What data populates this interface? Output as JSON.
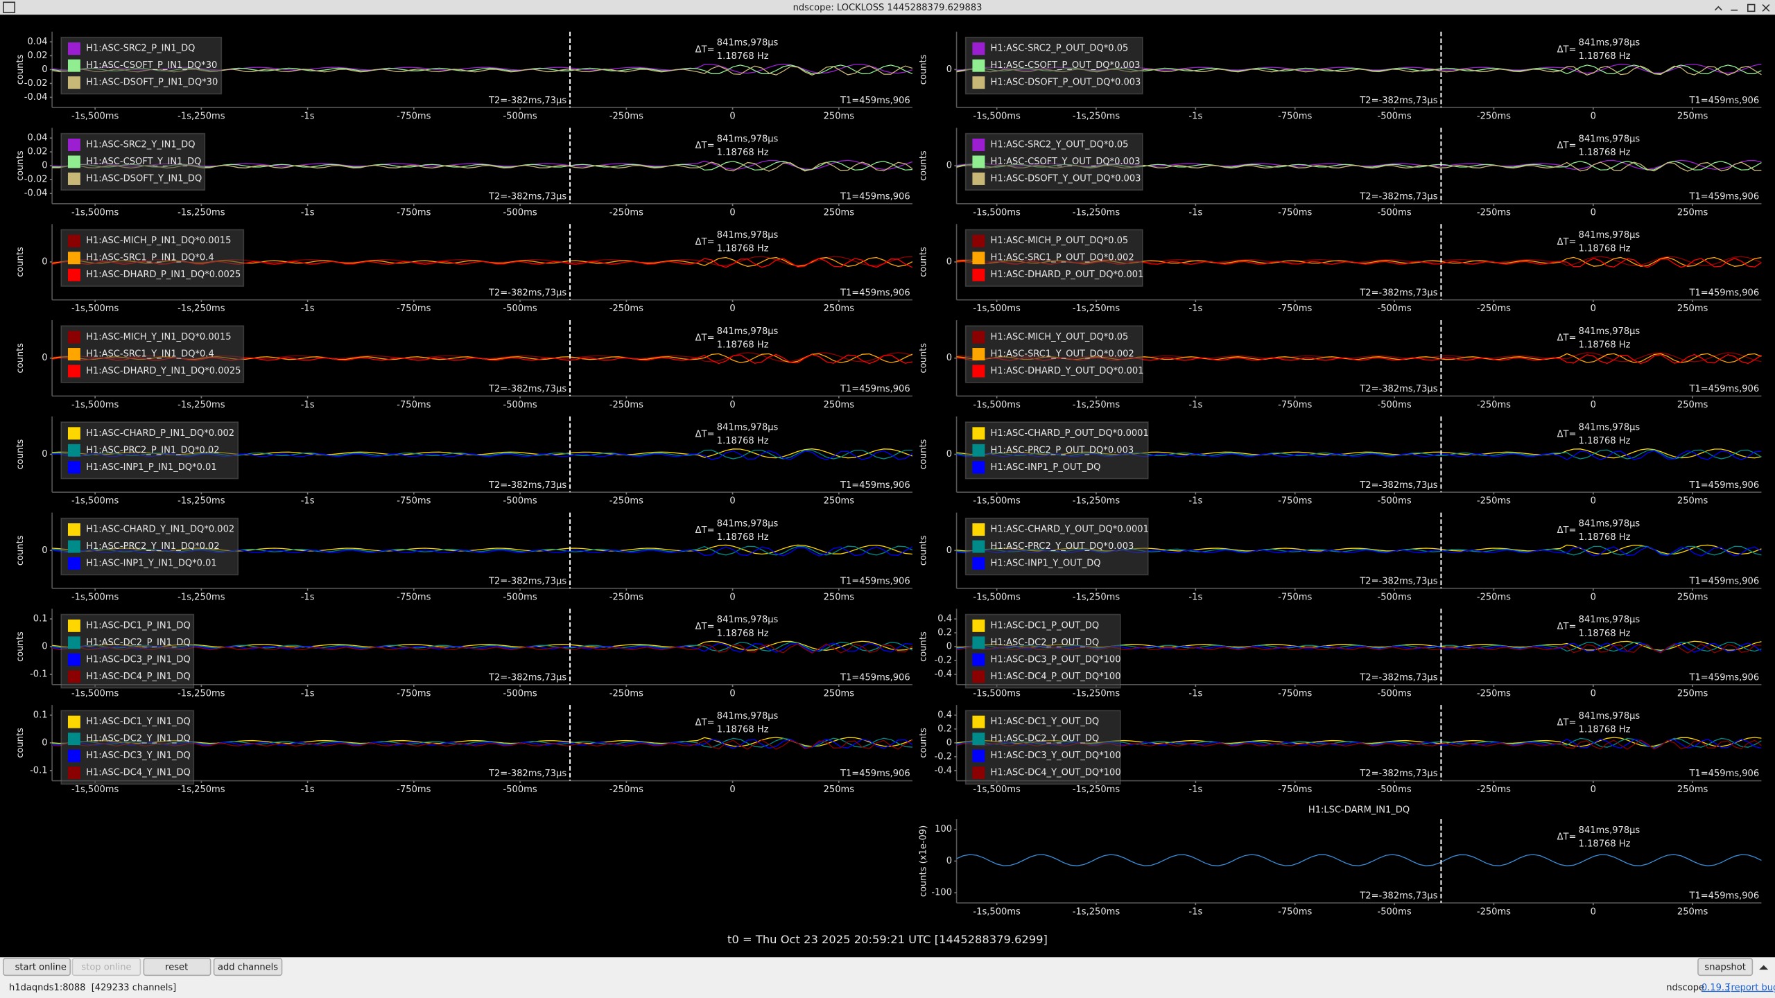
{
  "window_title": "ndscope: LOCKLOSS 1445288379.629883",
  "x_ticks": [
    "-1s,500ms",
    "-1s,250ms",
    "-1s",
    "-750ms",
    "-500ms",
    "-250ms",
    "0",
    "250ms"
  ],
  "cursors": {
    "delta_label": "ΔT=",
    "delta": "841ms,978µs",
    "freq": "1.18768 Hz",
    "t1": "T1=459ms,906",
    "t2": "T2=-382ms,73µs"
  },
  "panels": [
    {
      "y_label": "counts",
      "yticks": [
        0.04,
        0.02,
        0,
        -0.02,
        -0.04
      ],
      "channels": [
        {
          "name": "H1:ASC-SRC2_P_IN1_DQ",
          "color": "#9b1fd0"
        },
        {
          "name": "H1:ASC-CSOFT_P_IN1_DQ*30",
          "color": "#90ee90"
        },
        {
          "name": "H1:ASC-DSOFT_P_IN1_DQ*30",
          "color": "#c8b878"
        }
      ]
    },
    {
      "y_label": "counts",
      "yticks": [
        0.04,
        0.02,
        0,
        -0.02,
        -0.04
      ],
      "channels": [
        {
          "name": "H1:ASC-SRC2_Y_IN1_DQ",
          "color": "#9b1fd0"
        },
        {
          "name": "H1:ASC-CSOFT_Y_IN1_DQ",
          "color": "#90ee90"
        },
        {
          "name": "H1:ASC-DSOFT_Y_IN1_DQ",
          "color": "#c8b878"
        }
      ]
    },
    {
      "y_label": "counts",
      "yticks": [
        0
      ],
      "channels": [
        {
          "name": "H1:ASC-MICH_P_IN1_DQ*0.0015",
          "color": "#8b0000"
        },
        {
          "name": "H1:ASC-SRC1_P_IN1_DQ*0.4",
          "color": "#ffa500"
        },
        {
          "name": "H1:ASC-DHARD_P_IN1_DQ*0.0025",
          "color": "#ff0000"
        }
      ]
    },
    {
      "y_label": "counts",
      "yticks": [
        0
      ],
      "channels": [
        {
          "name": "H1:ASC-MICH_Y_IN1_DQ*0.0015",
          "color": "#8b0000"
        },
        {
          "name": "H1:ASC-SRC1_Y_IN1_DQ*0.4",
          "color": "#ffa500"
        },
        {
          "name": "H1:ASC-DHARD_Y_IN1_DQ*0.0025",
          "color": "#ff0000"
        }
      ]
    },
    {
      "y_label": "counts",
      "yticks": [
        0
      ],
      "channels": [
        {
          "name": "H1:ASC-CHARD_P_IN1_DQ*0.002",
          "color": "#ffd700"
        },
        {
          "name": "H1:ASC-PRC2_P_IN1_DQ*0.02",
          "color": "#008b8b"
        },
        {
          "name": "H1:ASC-INP1_P_IN1_DQ*0.01",
          "color": "#0000ff"
        }
      ]
    },
    {
      "y_label": "counts",
      "yticks": [
        0
      ],
      "channels": [
        {
          "name": "H1:ASC-CHARD_Y_IN1_DQ*0.002",
          "color": "#ffd700"
        },
        {
          "name": "H1:ASC-PRC2_Y_IN1_DQ*0.02",
          "color": "#008b8b"
        },
        {
          "name": "H1:ASC-INP1_Y_IN1_DQ*0.01",
          "color": "#0000ff"
        }
      ]
    },
    {
      "y_label": "counts",
      "yticks": [
        0.1,
        0,
        -0.1
      ],
      "channels": [
        {
          "name": "H1:ASC-DC1_P_IN1_DQ",
          "color": "#ffd700"
        },
        {
          "name": "H1:ASC-DC2_P_IN1_DQ",
          "color": "#008b8b"
        },
        {
          "name": "H1:ASC-DC3_P_IN1_DQ",
          "color": "#0000ff"
        },
        {
          "name": "H1:ASC-DC4_P_IN1_DQ",
          "color": "#8b0000"
        }
      ]
    },
    {
      "y_label": "counts",
      "yticks": [
        0.1,
        0,
        -0.1
      ],
      "channels": [
        {
          "name": "H1:ASC-DC1_Y_IN1_DQ",
          "color": "#ffd700"
        },
        {
          "name": "H1:ASC-DC2_Y_IN1_DQ",
          "color": "#008b8b"
        },
        {
          "name": "H1:ASC-DC3_Y_IN1_DQ",
          "color": "#0000ff"
        },
        {
          "name": "H1:ASC-DC4_Y_IN1_DQ",
          "color": "#8b0000"
        }
      ]
    },
    {
      "y_label": "counts",
      "yticks": [
        0
      ],
      "channels": [
        {
          "name": "H1:ASC-SRC2_P_OUT_DQ*0.05",
          "color": "#9b1fd0"
        },
        {
          "name": "H1:ASC-CSOFT_P_OUT_DQ*0.003",
          "color": "#90ee90"
        },
        {
          "name": "H1:ASC-DSOFT_P_OUT_DQ*0.003",
          "color": "#c8b878"
        }
      ]
    },
    {
      "y_label": "counts",
      "yticks": [
        0
      ],
      "channels": [
        {
          "name": "H1:ASC-SRC2_Y_OUT_DQ*0.05",
          "color": "#9b1fd0"
        },
        {
          "name": "H1:ASC-CSOFT_Y_OUT_DQ*0.003",
          "color": "#90ee90"
        },
        {
          "name": "H1:ASC-DSOFT_Y_OUT_DQ*0.003",
          "color": "#c8b878"
        }
      ]
    },
    {
      "y_label": "counts",
      "yticks": [
        0
      ],
      "channels": [
        {
          "name": "H1:ASC-MICH_P_OUT_DQ*0.05",
          "color": "#8b0000"
        },
        {
          "name": "H1:ASC-SRC1_P_OUT_DQ*0.002",
          "color": "#ffa500"
        },
        {
          "name": "H1:ASC-DHARD_P_OUT_DQ*0.001",
          "color": "#ff0000"
        }
      ]
    },
    {
      "y_label": "counts",
      "yticks": [
        0
      ],
      "channels": [
        {
          "name": "H1:ASC-MICH_Y_OUT_DQ*0.05",
          "color": "#8b0000"
        },
        {
          "name": "H1:ASC-SRC1_Y_OUT_DQ*0.002",
          "color": "#ffa500"
        },
        {
          "name": "H1:ASC-DHARD_Y_OUT_DQ*0.001",
          "color": "#ff0000"
        }
      ]
    },
    {
      "y_label": "counts",
      "yticks": [
        0
      ],
      "channels": [
        {
          "name": "H1:ASC-CHARD_P_OUT_DQ*0.0001",
          "color": "#ffd700"
        },
        {
          "name": "H1:ASC-PRC2_P_OUT_DQ*0.003",
          "color": "#008b8b"
        },
        {
          "name": "H1:ASC-INP1_P_OUT_DQ",
          "color": "#0000ff"
        }
      ]
    },
    {
      "y_label": "counts",
      "yticks": [
        0
      ],
      "channels": [
        {
          "name": "H1:ASC-CHARD_Y_OUT_DQ*0.0001",
          "color": "#ffd700"
        },
        {
          "name": "H1:ASC-PRC2_Y_OUT_DQ*0.003",
          "color": "#008b8b"
        },
        {
          "name": "H1:ASC-INP1_Y_OUT_DQ",
          "color": "#0000ff"
        }
      ]
    },
    {
      "y_label": "counts",
      "yticks": [
        0.4,
        0.2,
        0,
        -0.2,
        -0.4
      ],
      "channels": [
        {
          "name": "H1:ASC-DC1_P_OUT_DQ",
          "color": "#ffd700"
        },
        {
          "name": "H1:ASC-DC2_P_OUT_DQ",
          "color": "#008b8b"
        },
        {
          "name": "H1:ASC-DC3_P_OUT_DQ*100",
          "color": "#0000ff"
        },
        {
          "name": "H1:ASC-DC4_P_OUT_DQ*100",
          "color": "#8b0000"
        }
      ]
    },
    {
      "y_label": "counts",
      "yticks": [
        0.4,
        0.2,
        0,
        -0.2,
        -0.4
      ],
      "channels": [
        {
          "name": "H1:ASC-DC1_Y_OUT_DQ",
          "color": "#ffd700"
        },
        {
          "name": "H1:ASC-DC2_Y_OUT_DQ",
          "color": "#008b8b"
        },
        {
          "name": "H1:ASC-DC3_Y_OUT_DQ*100",
          "color": "#0000ff"
        },
        {
          "name": "H1:ASC-DC4_Y_OUT_DQ*100",
          "color": "#8b0000"
        }
      ]
    },
    {
      "title": "H1:LSC-DARM_IN1_DQ",
      "y_label": "counts (x1e-09)",
      "yticks": [
        100,
        0,
        -100
      ],
      "trace_color": "#3a8fd9",
      "channels": []
    }
  ],
  "t0": "t0 = Thu Oct 23 2025 20:59:21 UTC [1445288379.6299]",
  "buttons": {
    "start": "start online",
    "stop": "stop online",
    "reset": "reset",
    "add": "add channels",
    "snapshot": "snapshot"
  },
  "status": {
    "server": "h1daqnds1:8088  [429233 channels]",
    "app": "ndscope",
    "version": "0.19.3",
    "report": "[report bug]"
  }
}
